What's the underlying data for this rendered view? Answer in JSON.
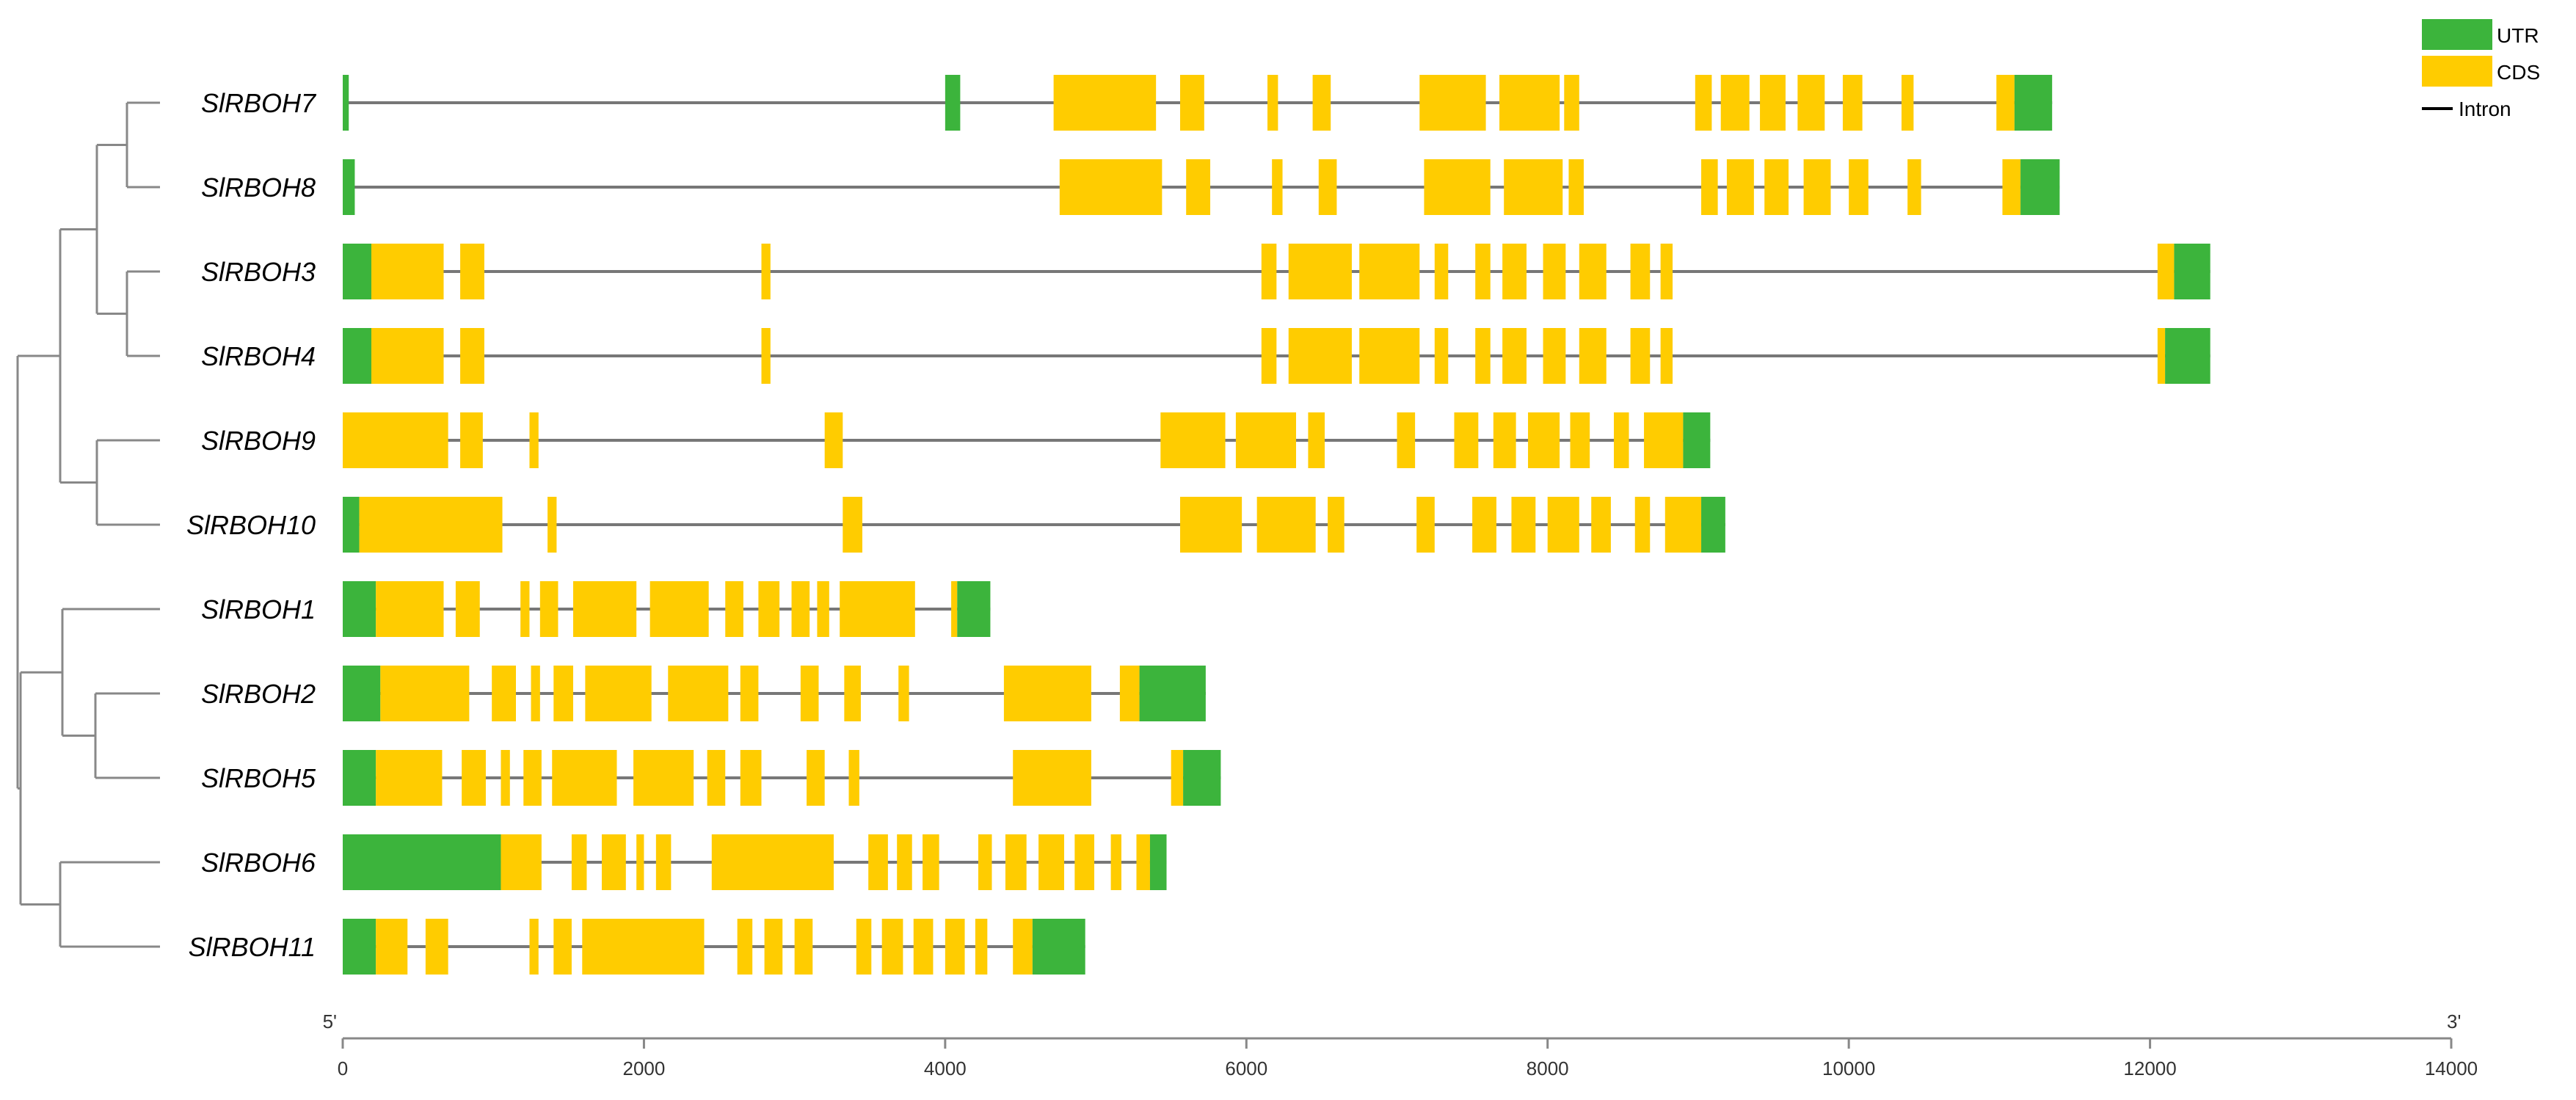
{
  "colors": {
    "utr": "#3CB43C",
    "cds": "#FFCC00",
    "intron": "#777777",
    "tree": "#888888",
    "axis": "#888888"
  },
  "legend": [
    {
      "key": "utr",
      "label": "UTR"
    },
    {
      "key": "cds",
      "label": "CDS"
    },
    {
      "key": "intron",
      "label": "Intron"
    }
  ],
  "axis": {
    "start_label": "5'",
    "end_label": "3'",
    "ticks": [
      0,
      2000,
      4000,
      6000,
      8000,
      10000,
      12000,
      14000
    ],
    "max": 14000
  },
  "tree_leaf_order": [
    "SlRBOH7",
    "SlRBOH8",
    "SlRBOH3",
    "SlRBOH4",
    "SlRBOH9",
    "SlRBOH10",
    "SlRBOH1",
    "SlRBOH2",
    "SlRBOH5",
    "SlRBOH6",
    "SlRBOH11"
  ],
  "genes": [
    {
      "name": "SlRBOH7",
      "length": 11350,
      "features": [
        [
          "utr",
          0,
          40
        ],
        [
          "utr",
          4000,
          4100
        ],
        [
          "cds",
          4720,
          5400
        ],
        [
          "cds",
          5560,
          5720
        ],
        [
          "cds",
          6140,
          6210
        ],
        [
          "cds",
          6440,
          6560
        ],
        [
          "cds",
          7150,
          7590
        ],
        [
          "cds",
          7680,
          8080
        ],
        [
          "cds",
          8110,
          8210
        ],
        [
          "cds",
          8980,
          9090
        ],
        [
          "cds",
          9150,
          9340
        ],
        [
          "cds",
          9410,
          9580
        ],
        [
          "cds",
          9660,
          9840
        ],
        [
          "cds",
          9960,
          10090
        ],
        [
          "cds",
          10350,
          10430
        ],
        [
          "cds",
          10980,
          11100
        ],
        [
          "utr",
          11100,
          11350
        ]
      ]
    },
    {
      "name": "SlRBOH8",
      "length": 11400,
      "features": [
        [
          "utr",
          0,
          80
        ],
        [
          "cds",
          4760,
          5440
        ],
        [
          "cds",
          5600,
          5760
        ],
        [
          "cds",
          6170,
          6240
        ],
        [
          "cds",
          6480,
          6600
        ],
        [
          "cds",
          7180,
          7620
        ],
        [
          "cds",
          7710,
          8100
        ],
        [
          "cds",
          8140,
          8240
        ],
        [
          "cds",
          9020,
          9130
        ],
        [
          "cds",
          9190,
          9370
        ],
        [
          "cds",
          9440,
          9600
        ],
        [
          "cds",
          9700,
          9880
        ],
        [
          "cds",
          10000,
          10130
        ],
        [
          "cds",
          10390,
          10480
        ],
        [
          "cds",
          11020,
          11140
        ],
        [
          "utr",
          11140,
          11400
        ]
      ]
    },
    {
      "name": "SlRBOH3",
      "length": 12400,
      "features": [
        [
          "utr",
          0,
          190
        ],
        [
          "cds",
          190,
          670
        ],
        [
          "cds",
          780,
          940
        ],
        [
          "cds",
          2780,
          2840
        ],
        [
          "cds",
          6100,
          6200
        ],
        [
          "cds",
          6280,
          6700
        ],
        [
          "cds",
          6750,
          7150
        ],
        [
          "cds",
          7250,
          7340
        ],
        [
          "cds",
          7520,
          7620
        ],
        [
          "cds",
          7700,
          7860
        ],
        [
          "cds",
          7970,
          8120
        ],
        [
          "cds",
          8210,
          8390
        ],
        [
          "cds",
          8550,
          8680
        ],
        [
          "cds",
          8750,
          8830
        ],
        [
          "cds",
          12050,
          12160
        ],
        [
          "utr",
          12160,
          12400
        ]
      ]
    },
    {
      "name": "SlRBOH4",
      "length": 12400,
      "features": [
        [
          "utr",
          0,
          190
        ],
        [
          "cds",
          190,
          670
        ],
        [
          "cds",
          780,
          940
        ],
        [
          "cds",
          2780,
          2840
        ],
        [
          "cds",
          6100,
          6200
        ],
        [
          "cds",
          6280,
          6700
        ],
        [
          "cds",
          6750,
          7150
        ],
        [
          "cds",
          7250,
          7340
        ],
        [
          "cds",
          7520,
          7620
        ],
        [
          "cds",
          7700,
          7860
        ],
        [
          "cds",
          7970,
          8120
        ],
        [
          "cds",
          8210,
          8390
        ],
        [
          "cds",
          8550,
          8680
        ],
        [
          "cds",
          8750,
          8830
        ],
        [
          "cds",
          12050,
          12100
        ],
        [
          "utr",
          12100,
          12400
        ]
      ]
    },
    {
      "name": "SlRBOH9",
      "length": 9080,
      "features": [
        [
          "cds",
          0,
          700
        ],
        [
          "cds",
          780,
          930
        ],
        [
          "cds",
          1240,
          1300
        ],
        [
          "cds",
          3200,
          3320
        ],
        [
          "cds",
          5430,
          5860
        ],
        [
          "cds",
          5930,
          6330
        ],
        [
          "cds",
          6410,
          6520
        ],
        [
          "cds",
          7000,
          7120
        ],
        [
          "cds",
          7380,
          7540
        ],
        [
          "cds",
          7640,
          7790
        ],
        [
          "cds",
          7870,
          8080
        ],
        [
          "cds",
          8150,
          8280
        ],
        [
          "cds",
          8440,
          8540
        ],
        [
          "cds",
          8640,
          8900
        ],
        [
          "utr",
          8900,
          9080
        ]
      ]
    },
    {
      "name": "SlRBOH10",
      "length": 9180,
      "features": [
        [
          "utr",
          0,
          110
        ],
        [
          "cds",
          110,
          1060
        ],
        [
          "cds",
          1360,
          1420
        ],
        [
          "cds",
          3320,
          3450
        ],
        [
          "cds",
          5560,
          5970
        ],
        [
          "cds",
          6070,
          6460
        ],
        [
          "cds",
          6540,
          6650
        ],
        [
          "cds",
          7130,
          7250
        ],
        [
          "cds",
          7500,
          7660
        ],
        [
          "cds",
          7760,
          7920
        ],
        [
          "cds",
          8000,
          8210
        ],
        [
          "cds",
          8290,
          8420
        ],
        [
          "cds",
          8580,
          8680
        ],
        [
          "cds",
          8780,
          9020
        ],
        [
          "utr",
          9020,
          9180
        ]
      ]
    },
    {
      "name": "SlRBOH1",
      "length": 4300,
      "features": [
        [
          "utr",
          0,
          220
        ],
        [
          "cds",
          220,
          670
        ],
        [
          "cds",
          750,
          910
        ],
        [
          "cds",
          1180,
          1240
        ],
        [
          "cds",
          1310,
          1430
        ],
        [
          "cds",
          1530,
          1950
        ],
        [
          "cds",
          2040,
          2430
        ],
        [
          "cds",
          2540,
          2660
        ],
        [
          "cds",
          2760,
          2900
        ],
        [
          "cds",
          2980,
          3100
        ],
        [
          "cds",
          3150,
          3230
        ],
        [
          "cds",
          3300,
          3800
        ],
        [
          "cds",
          4040,
          4080
        ],
        [
          "utr",
          4080,
          4300
        ]
      ]
    },
    {
      "name": "SlRBOH2",
      "length": 5730,
      "features": [
        [
          "utr",
          0,
          250
        ],
        [
          "cds",
          250,
          840
        ],
        [
          "cds",
          990,
          1150
        ],
        [
          "cds",
          1250,
          1310
        ],
        [
          "cds",
          1400,
          1530
        ],
        [
          "cds",
          1610,
          2050
        ],
        [
          "cds",
          2160,
          2560
        ],
        [
          "cds",
          2640,
          2760
        ],
        [
          "cds",
          3040,
          3160
        ],
        [
          "cds",
          3330,
          3440
        ],
        [
          "cds",
          3690,
          3760
        ],
        [
          "cds",
          4390,
          4970
        ],
        [
          "cds",
          5160,
          5290
        ],
        [
          "utr",
          5290,
          5730
        ]
      ]
    },
    {
      "name": "SlRBOH5",
      "length": 5830,
      "features": [
        [
          "utr",
          0,
          220
        ],
        [
          "cds",
          220,
          660
        ],
        [
          "cds",
          790,
          950
        ],
        [
          "cds",
          1050,
          1110
        ],
        [
          "cds",
          1200,
          1320
        ],
        [
          "cds",
          1390,
          1820
        ],
        [
          "cds",
          1930,
          2330
        ],
        [
          "cds",
          2420,
          2540
        ],
        [
          "cds",
          2640,
          2780
        ],
        [
          "cds",
          3080,
          3200
        ],
        [
          "cds",
          3360,
          3430
        ],
        [
          "cds",
          4450,
          4970
        ],
        [
          "cds",
          5500,
          5580
        ],
        [
          "utr",
          5580,
          5830
        ]
      ]
    },
    {
      "name": "SlRBOH6",
      "length": 5470,
      "features": [
        [
          "utr",
          0,
          1050
        ],
        [
          "cds",
          1050,
          1320
        ],
        [
          "cds",
          1520,
          1620
        ],
        [
          "cds",
          1720,
          1880
        ],
        [
          "cds",
          1950,
          2000
        ],
        [
          "cds",
          2080,
          2180
        ],
        [
          "cds",
          2450,
          3260
        ],
        [
          "cds",
          3490,
          3620
        ],
        [
          "cds",
          3680,
          3780
        ],
        [
          "cds",
          3850,
          3960
        ],
        [
          "cds",
          4220,
          4310
        ],
        [
          "cds",
          4400,
          4540
        ],
        [
          "cds",
          4620,
          4790
        ],
        [
          "cds",
          4860,
          4990
        ],
        [
          "cds",
          5100,
          5170
        ],
        [
          "cds",
          5270,
          5360
        ],
        [
          "utr",
          5360,
          5470
        ]
      ]
    },
    {
      "name": "SlRBOH11",
      "length": 4930,
      "features": [
        [
          "utr",
          0,
          220
        ],
        [
          "cds",
          220,
          430
        ],
        [
          "cds",
          550,
          700
        ],
        [
          "cds",
          1240,
          1300
        ],
        [
          "cds",
          1400,
          1520
        ],
        [
          "cds",
          1590,
          2400
        ],
        [
          "cds",
          2620,
          2720
        ],
        [
          "cds",
          2800,
          2920
        ],
        [
          "cds",
          3000,
          3120
        ],
        [
          "cds",
          3410,
          3510
        ],
        [
          "cds",
          3580,
          3720
        ],
        [
          "cds",
          3790,
          3920
        ],
        [
          "cds",
          4000,
          4130
        ],
        [
          "cds",
          4200,
          4280
        ],
        [
          "cds",
          4450,
          4580
        ],
        [
          "utr",
          4580,
          4930
        ]
      ]
    }
  ]
}
